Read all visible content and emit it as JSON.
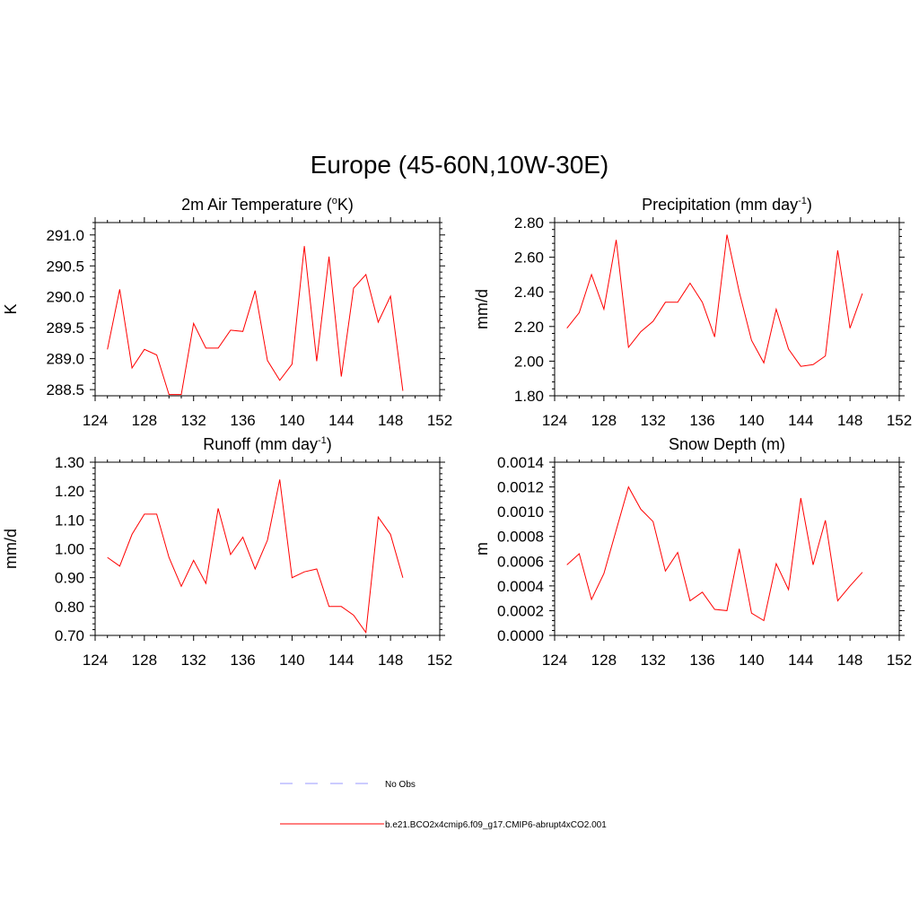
{
  "title": "Europe (45-60N,10W-30E)",
  "colors": {
    "series": "#ff0000",
    "obs": "#9999ff",
    "frame": "#000000"
  },
  "legend": {
    "items": [
      {
        "label": "No Obs",
        "style": "dashed",
        "color": "#9999ff"
      },
      {
        "label": "b.e21.BCO2x4cmip6.f09_g17.CMIP6-abrupt4xCO2.001",
        "style": "solid",
        "color": "#ff0000"
      }
    ]
  },
  "chart_data": [
    {
      "type": "line",
      "title_main": "2m Air Temperature (",
      "title_sup": "o",
      "title_end": "K)",
      "ylabel": "K",
      "xlim": [
        124,
        152
      ],
      "ylim": [
        288.4,
        291.2
      ],
      "xticks": [
        124,
        128,
        132,
        136,
        140,
        144,
        148,
        152
      ],
      "yticks": [
        288.5,
        289.0,
        289.5,
        290.0,
        290.5,
        291.0
      ],
      "ytick_labels": [
        "288.5",
        "289.0",
        "289.5",
        "290.0",
        "290.5",
        "291.0"
      ],
      "x": [
        125,
        126,
        127,
        128,
        129,
        130,
        131,
        132,
        133,
        134,
        135,
        136,
        137,
        138,
        139,
        140,
        141,
        142,
        143,
        144,
        145,
        146,
        147,
        148,
        149
      ],
      "y": [
        289.15,
        290.12,
        288.85,
        289.15,
        289.06,
        288.42,
        288.42,
        289.57,
        289.17,
        289.17,
        289.46,
        289.44,
        290.1,
        288.97,
        288.65,
        288.91,
        290.82,
        288.96,
        290.65,
        288.71,
        290.14,
        290.36,
        289.59,
        290.01,
        288.48
      ]
    },
    {
      "type": "line",
      "title_main": "Precipitation (mm day",
      "title_sup": "-1",
      "title_end": ")",
      "ylabel": "mm/d",
      "xlim": [
        124,
        152
      ],
      "ylim": [
        1.8,
        2.8
      ],
      "xticks": [
        124,
        128,
        132,
        136,
        140,
        144,
        148,
        152
      ],
      "yticks": [
        1.8,
        2.0,
        2.2,
        2.4,
        2.6,
        2.8
      ],
      "ytick_labels": [
        "1.80",
        "2.00",
        "2.20",
        "2.40",
        "2.60",
        "2.80"
      ],
      "x": [
        125,
        126,
        127,
        128,
        129,
        130,
        131,
        132,
        133,
        134,
        135,
        136,
        137,
        138,
        139,
        140,
        141,
        142,
        143,
        144,
        145,
        146,
        147,
        148,
        149
      ],
      "y": [
        2.19,
        2.28,
        2.5,
        2.3,
        2.7,
        2.08,
        2.17,
        2.23,
        2.34,
        2.34,
        2.45,
        2.34,
        2.14,
        2.73,
        2.4,
        2.12,
        1.99,
        2.3,
        2.07,
        1.97,
        1.98,
        2.03,
        2.64,
        2.19,
        2.39
      ]
    },
    {
      "type": "line",
      "title_main": "Runoff (mm day",
      "title_sup": "-1",
      "title_end": ")",
      "ylabel": "mm/d",
      "xlim": [
        124,
        152
      ],
      "ylim": [
        0.7,
        1.3
      ],
      "xticks": [
        124,
        128,
        132,
        136,
        140,
        144,
        148,
        152
      ],
      "yticks": [
        0.7,
        0.8,
        0.9,
        1.0,
        1.1,
        1.2,
        1.3
      ],
      "ytick_labels": [
        "0.70",
        "0.80",
        "0.90",
        "1.00",
        "1.10",
        "1.20",
        "1.30"
      ],
      "x": [
        125,
        126,
        127,
        128,
        129,
        130,
        131,
        132,
        133,
        134,
        135,
        136,
        137,
        138,
        139,
        140,
        141,
        142,
        143,
        144,
        145,
        146,
        147,
        148,
        149
      ],
      "y": [
        0.97,
        0.94,
        1.05,
        1.12,
        1.12,
        0.97,
        0.87,
        0.96,
        0.88,
        1.14,
        0.98,
        1.04,
        0.93,
        1.03,
        1.24,
        0.9,
        0.92,
        0.93,
        0.8,
        0.8,
        0.77,
        0.71,
        1.11,
        1.05,
        0.9
      ]
    },
    {
      "type": "line",
      "title_main": "Snow Depth (m)",
      "title_sup": "",
      "title_end": "",
      "ylabel": "m",
      "xlim": [
        124,
        152
      ],
      "ylim": [
        0,
        0.0014
      ],
      "xticks": [
        124,
        128,
        132,
        136,
        140,
        144,
        148,
        152
      ],
      "yticks": [
        0,
        0.0002,
        0.0004,
        0.0006,
        0.0008,
        0.001,
        0.0012,
        0.0014
      ],
      "ytick_labels": [
        "0.0000",
        "0.0002",
        "0.0004",
        "0.0006",
        "0.0008",
        "0.0010",
        "0.0012",
        "0.0014"
      ],
      "x": [
        125,
        126,
        127,
        128,
        129,
        130,
        131,
        132,
        133,
        134,
        135,
        136,
        137,
        138,
        139,
        140,
        141,
        142,
        143,
        144,
        145,
        146,
        147,
        148,
        149
      ],
      "y": [
        0.00057,
        0.00066,
        0.00029,
        0.0005,
        0.00085,
        0.0012,
        0.00102,
        0.00092,
        0.00052,
        0.00067,
        0.00028,
        0.00035,
        0.00021,
        0.0002,
        0.0007,
        0.00018,
        0.00012,
        0.00058,
        0.00037,
        0.00111,
        0.00057,
        0.00093,
        0.00028,
        0.0004,
        0.00051
      ]
    }
  ]
}
